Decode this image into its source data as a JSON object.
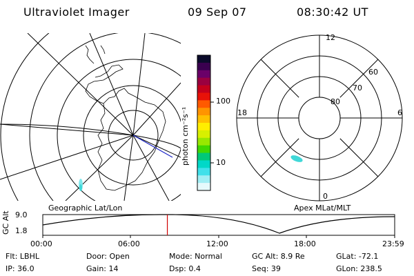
{
  "header": {
    "instrument": "Ultraviolet Imager",
    "date": "09 Sep 07",
    "time": "08:30:42 UT"
  },
  "colorbar": {
    "unit_label": "photon cm⁻²s⁻¹",
    "ticks": [
      "100",
      "10"
    ],
    "colors": [
      "#0b0b2b",
      "#3a004f",
      "#6a0068",
      "#9a0040",
      "#c4001c",
      "#e81208",
      "#ff5a00",
      "#ff9400",
      "#ffc000",
      "#ffee00",
      "#d8f000",
      "#98e800",
      "#40d800",
      "#00c878",
      "#00d8c8",
      "#40e0ea",
      "#a0eef4",
      "#e6fafc"
    ]
  },
  "maps": {
    "left_label": "Geographic Lat/Lon",
    "right_label": "Apex MLat/MLT",
    "right_ring_labels": [
      "80",
      "70",
      "60"
    ],
    "right_mlt_labels": [
      "12",
      "18",
      "6",
      "0"
    ]
  },
  "timeline": {
    "y_axis_label": "GC Alt",
    "y_ticks": [
      "9.0",
      "1.8"
    ],
    "x_ticks": [
      "00:00",
      "06:00",
      "12:00",
      "18:00",
      "23:59"
    ],
    "current_time_fraction": 0.354
  },
  "info": {
    "flt": "Flt: LBHL",
    "ip": "IP: 36.0",
    "door": "Door: Open",
    "gain": "Gain: 14",
    "mode": "Mode: Normal",
    "dsp": "Dsp:      0.4",
    "gcalt": "GC Alt: 8.9 Re",
    "seq": "Seq: 39",
    "glat": "GLat: -72.1",
    "glon": "GLon: 238.5"
  }
}
